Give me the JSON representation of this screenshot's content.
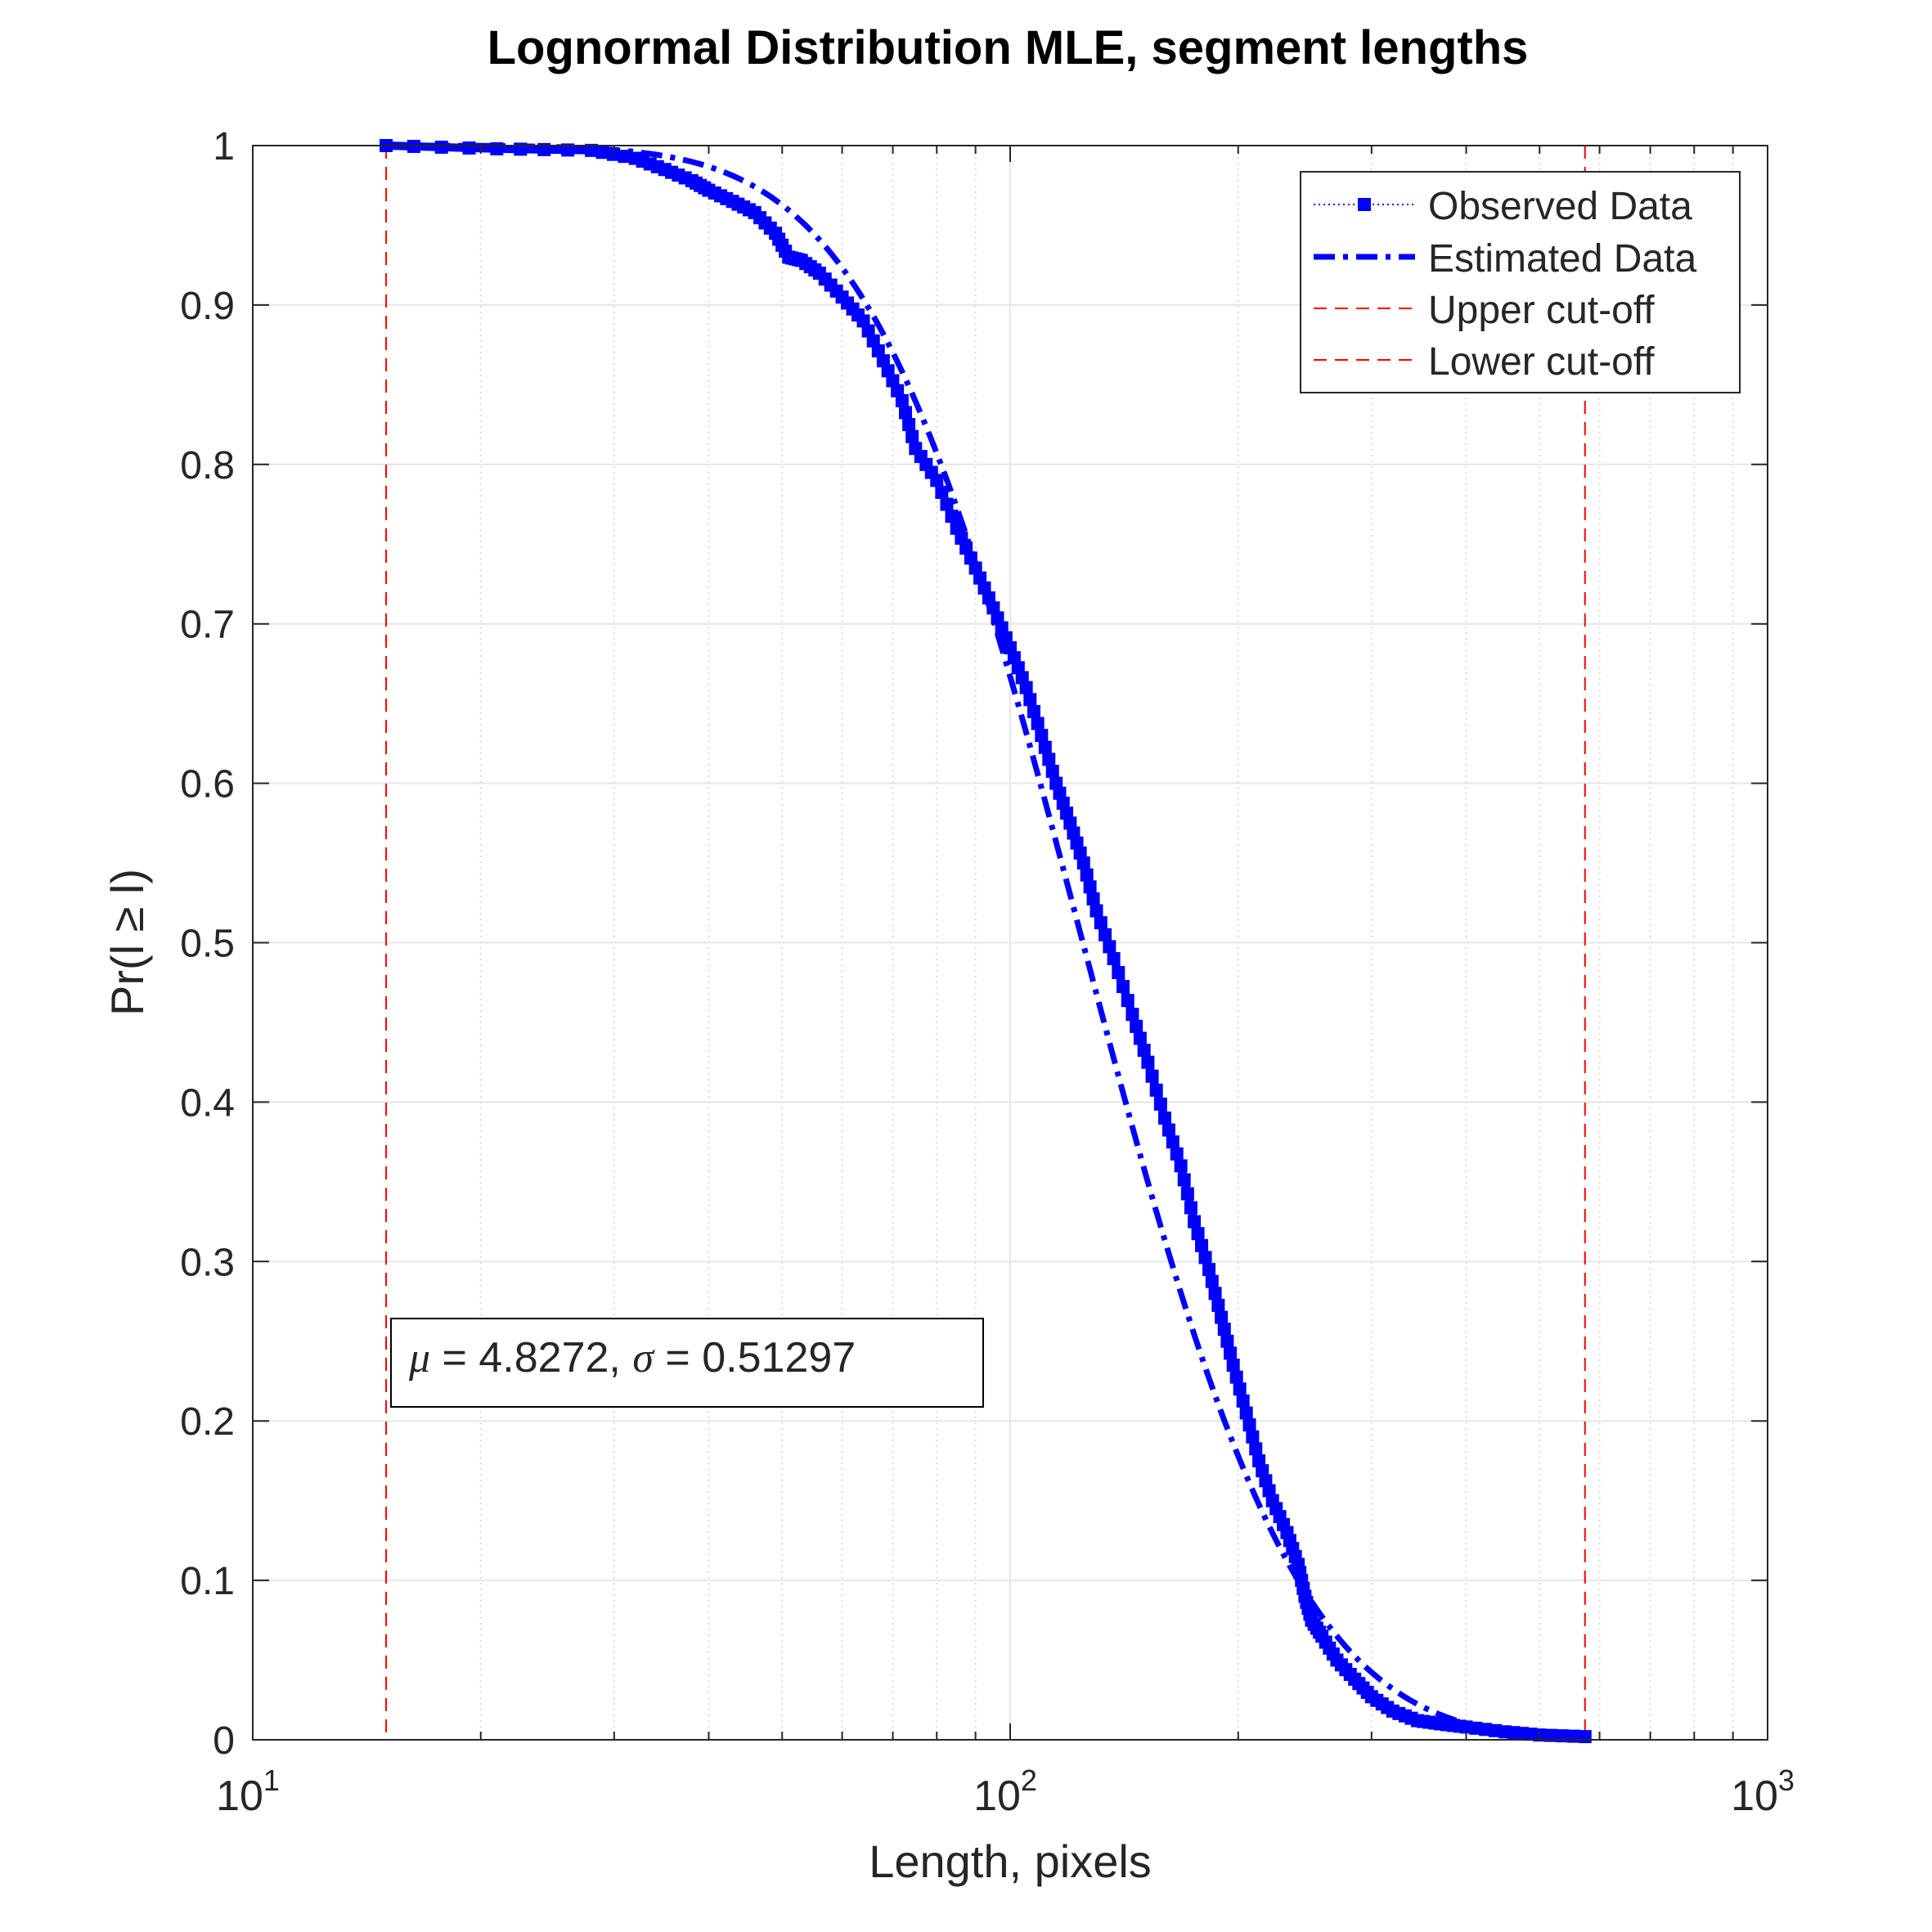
{
  "chart_data": {
    "type": "line",
    "title": "Lognormal Distribution MLE, segment lengths",
    "xlabel": "Length, pixels",
    "ylabel": "Pr(l ≥ l)",
    "x_scale": "log",
    "xlim": [
      10,
      1000
    ],
    "ylim": [
      0,
      1
    ],
    "grid": true,
    "legend_position": "top-right",
    "x_ticks": [
      {
        "value": 10,
        "base": "10",
        "exp": "1"
      },
      {
        "value": 100,
        "base": "10",
        "exp": "2"
      },
      {
        "value": 1000,
        "base": "10",
        "exp": "3"
      }
    ],
    "y_ticks": [
      {
        "value": 0,
        "label": "0"
      },
      {
        "value": 0.1,
        "label": "0.1"
      },
      {
        "value": 0.2,
        "label": "0.2"
      },
      {
        "value": 0.3,
        "label": "0.3"
      },
      {
        "value": 0.4,
        "label": "0.4"
      },
      {
        "value": 0.5,
        "label": "0.5"
      },
      {
        "value": 0.6,
        "label": "0.6"
      },
      {
        "value": 0.7,
        "label": "0.7"
      },
      {
        "value": 0.8,
        "label": "0.8"
      },
      {
        "value": 0.9,
        "label": "0.9"
      },
      {
        "value": 1,
        "label": "1"
      }
    ],
    "annotation": {
      "mu_symbol": "μ",
      "mu_text": " = 4.8272, ",
      "sigma_symbol": "σ",
      "sigma_text": " = 0.51297"
    },
    "cutoffs": {
      "lower": 15,
      "upper": 574
    },
    "colors": {
      "data": "#0000ff",
      "cutoff": "#ff0000",
      "grid": "#e6e6e6",
      "minor_grid": "#dcdcdc",
      "axis": "#262626"
    },
    "series": [
      {
        "name": "Observed Data",
        "style": "dotted-square-markers",
        "points": [
          [
            15,
            1.0
          ],
          [
            21,
            0.998
          ],
          [
            28,
            0.997
          ],
          [
            32,
            0.992
          ],
          [
            35,
            0.985
          ],
          [
            38,
            0.978
          ],
          [
            40,
            0.972
          ],
          [
            43,
            0.965
          ],
          [
            46,
            0.958
          ],
          [
            49,
            0.945
          ],
          [
            51,
            0.93
          ],
          [
            53,
            0.928
          ],
          [
            56,
            0.92
          ],
          [
            60,
            0.905
          ],
          [
            64,
            0.89
          ],
          [
            68,
            0.865
          ],
          [
            72,
            0.84
          ],
          [
            75,
            0.81
          ],
          [
            80,
            0.79
          ],
          [
            85,
            0.76
          ],
          [
            90,
            0.735
          ],
          [
            95,
            0.71
          ],
          [
            100,
            0.685
          ],
          [
            105,
            0.66
          ],
          [
            110,
            0.63
          ],
          [
            115,
            0.6
          ],
          [
            120,
            0.575
          ],
          [
            125,
            0.55
          ],
          [
            130,
            0.52
          ],
          [
            137,
            0.49
          ],
          [
            145,
            0.455
          ],
          [
            152,
            0.425
          ],
          [
            160,
            0.39
          ],
          [
            168,
            0.36
          ],
          [
            175,
            0.325
          ],
          [
            183,
            0.295
          ],
          [
            190,
            0.265
          ],
          [
            197,
            0.235
          ],
          [
            205,
            0.205
          ],
          [
            213,
            0.175
          ],
          [
            222,
            0.15
          ],
          [
            232,
            0.13
          ],
          [
            240,
            0.11
          ],
          [
            245,
            0.09
          ],
          [
            250,
            0.075
          ],
          [
            258,
            0.065
          ],
          [
            270,
            0.05
          ],
          [
            285,
            0.038
          ],
          [
            300,
            0.027
          ],
          [
            320,
            0.018
          ],
          [
            345,
            0.012
          ],
          [
            370,
            0.01
          ],
          [
            400,
            0.008
          ],
          [
            450,
            0.005
          ],
          [
            500,
            0.003
          ],
          [
            574,
            0.002
          ]
        ]
      },
      {
        "name": "Estimated Data",
        "style": "dash-dot",
        "mu": 4.8272,
        "sigma": 0.51297
      },
      {
        "name": "Upper cut-off",
        "style": "dashed",
        "x": 574
      },
      {
        "name": "Lower cut-off",
        "style": "dashed",
        "x": 15
      }
    ]
  }
}
